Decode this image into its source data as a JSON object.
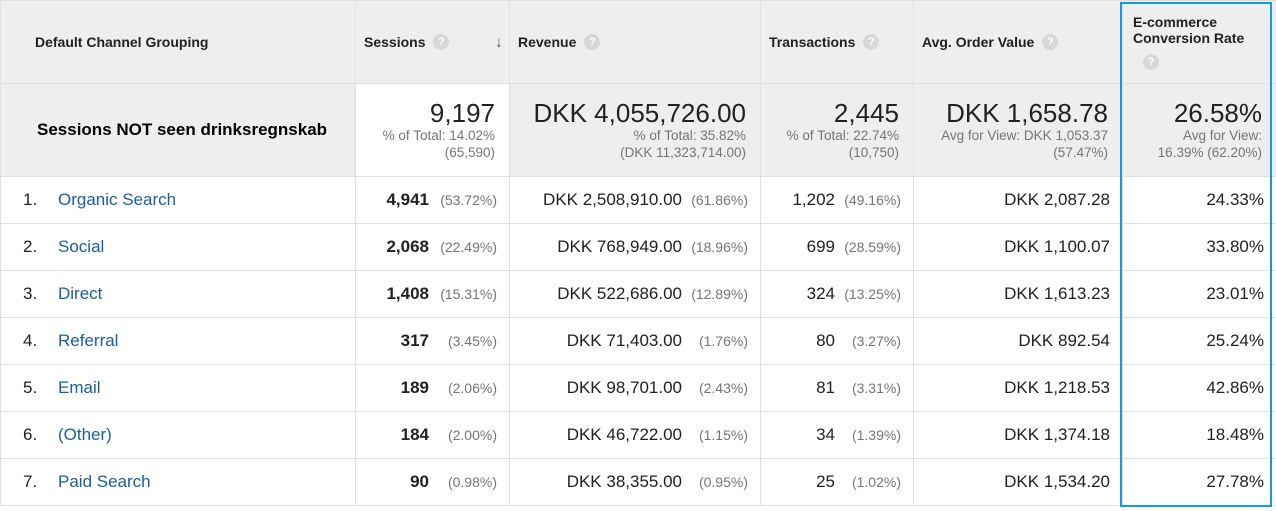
{
  "headers": {
    "dimension": "Default Channel Grouping",
    "sessions": "Sessions",
    "revenue": "Revenue",
    "transactions": "Transactions",
    "aov": "Avg. Order Value",
    "ecom_line1": "E-commerce",
    "ecom_line2": "Conversion Rate",
    "help_symbol": "?",
    "sort_symbol": "↓"
  },
  "totals": {
    "label": "Sessions NOT seen drinksregnskab",
    "sessions": {
      "value": "9,197",
      "line1": "% of Total: 14.02%",
      "line2": "(65,590)"
    },
    "revenue": {
      "value": "DKK 4,055,726.00",
      "line1": "% of Total: 35.82%",
      "line2": "(DKK 11,323,714.00)"
    },
    "transactions": {
      "value": "2,445",
      "line1": "% of Total: 22.74%",
      "line2": "(10,750)"
    },
    "aov": {
      "value": "DKK 1,658.78",
      "line1": "Avg for View: DKK 1,053.37",
      "line2": "(57.47%)"
    },
    "ecom": {
      "value": "26.58%",
      "line1": "Avg for View:",
      "line2": "16.39% (62.20%)"
    }
  },
  "rows": [
    {
      "idx": "1.",
      "name": "Organic Search",
      "sessions": "4,941",
      "sessions_pct": "(53.72%)",
      "revenue": "DKK 2,508,910.00",
      "revenue_pct": "(61.86%)",
      "transactions": "1,202",
      "transactions_pct": "(49.16%)",
      "aov": "DKK 2,087.28",
      "ecom": "24.33%"
    },
    {
      "idx": "2.",
      "name": "Social",
      "sessions": "2,068",
      "sessions_pct": "(22.49%)",
      "revenue": "DKK 768,949.00",
      "revenue_pct": "(18.96%)",
      "transactions": "699",
      "transactions_pct": "(28.59%)",
      "aov": "DKK 1,100.07",
      "ecom": "33.80%"
    },
    {
      "idx": "3.",
      "name": "Direct",
      "sessions": "1,408",
      "sessions_pct": "(15.31%)",
      "revenue": "DKK 522,686.00",
      "revenue_pct": "(12.89%)",
      "transactions": "324",
      "transactions_pct": "(13.25%)",
      "aov": "DKK 1,613.23",
      "ecom": "23.01%"
    },
    {
      "idx": "4.",
      "name": "Referral",
      "sessions": "317",
      "sessions_pct": "(3.45%)",
      "revenue": "DKK 71,403.00",
      "revenue_pct": "(1.76%)",
      "transactions": "80",
      "transactions_pct": "(3.27%)",
      "aov": "DKK 892.54",
      "ecom": "25.24%"
    },
    {
      "idx": "5.",
      "name": "Email",
      "sessions": "189",
      "sessions_pct": "(2.06%)",
      "revenue": "DKK 98,701.00",
      "revenue_pct": "(2.43%)",
      "transactions": "81",
      "transactions_pct": "(3.31%)",
      "aov": "DKK 1,218.53",
      "ecom": "42.86%"
    },
    {
      "idx": "6.",
      "name": "(Other)",
      "sessions": "184",
      "sessions_pct": "(2.00%)",
      "revenue": "DKK 46,722.00",
      "revenue_pct": "(1.15%)",
      "transactions": "34",
      "transactions_pct": "(1.39%)",
      "aov": "DKK 1,374.18",
      "ecom": "18.48%"
    },
    {
      "idx": "7.",
      "name": "Paid Search",
      "sessions": "90",
      "sessions_pct": "(0.98%)",
      "revenue": "DKK 38,355.00",
      "revenue_pct": "(0.95%)",
      "transactions": "25",
      "transactions_pct": "(1.02%)",
      "aov": "DKK 1,534.20",
      "ecom": "27.78%"
    }
  ],
  "colors": {
    "link": "#1a5fa1",
    "highlight": "#159ae0",
    "header_bg": "#eeeeee"
  }
}
